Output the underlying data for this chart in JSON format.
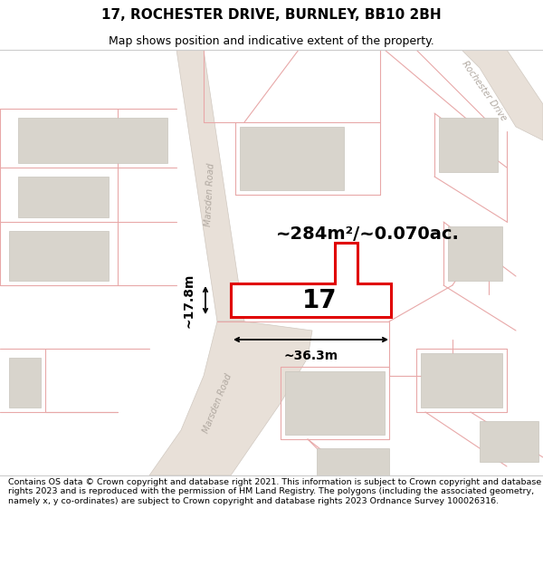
{
  "title": "17, ROCHESTER DRIVE, BURNLEY, BB10 2BH",
  "subtitle": "Map shows position and indicative extent of the property.",
  "footer": "Contains OS data © Crown copyright and database right 2021. This information is subject to Crown copyright and database rights 2023 and is reproduced with the permission of HM Land Registry. The polygons (including the associated geometry, namely x, y co-ordinates) are subject to Crown copyright and database rights 2023 Ordnance Survey 100026316.",
  "area_label": "~284m²/~0.070ac.",
  "width_label": "~36.3m",
  "height_label": "~17.8m",
  "number_label": "17",
  "map_bg": "#f7f5f2",
  "road_fill": "#e8e0d8",
  "road_edge": "#d0c8c0",
  "plot_line_color": "#e8a8a8",
  "building_face": "#d8d4cc",
  "building_edge": "#c8c4bc",
  "property_color": "#e00000",
  "property_fill": "#ffffff",
  "title_fontsize": 11,
  "subtitle_fontsize": 9,
  "footer_fontsize": 6.8,
  "area_fontsize": 14,
  "number_fontsize": 20,
  "dim_fontsize": 10,
  "road_label_color": "#b0a8a0",
  "road_label_size": 7
}
